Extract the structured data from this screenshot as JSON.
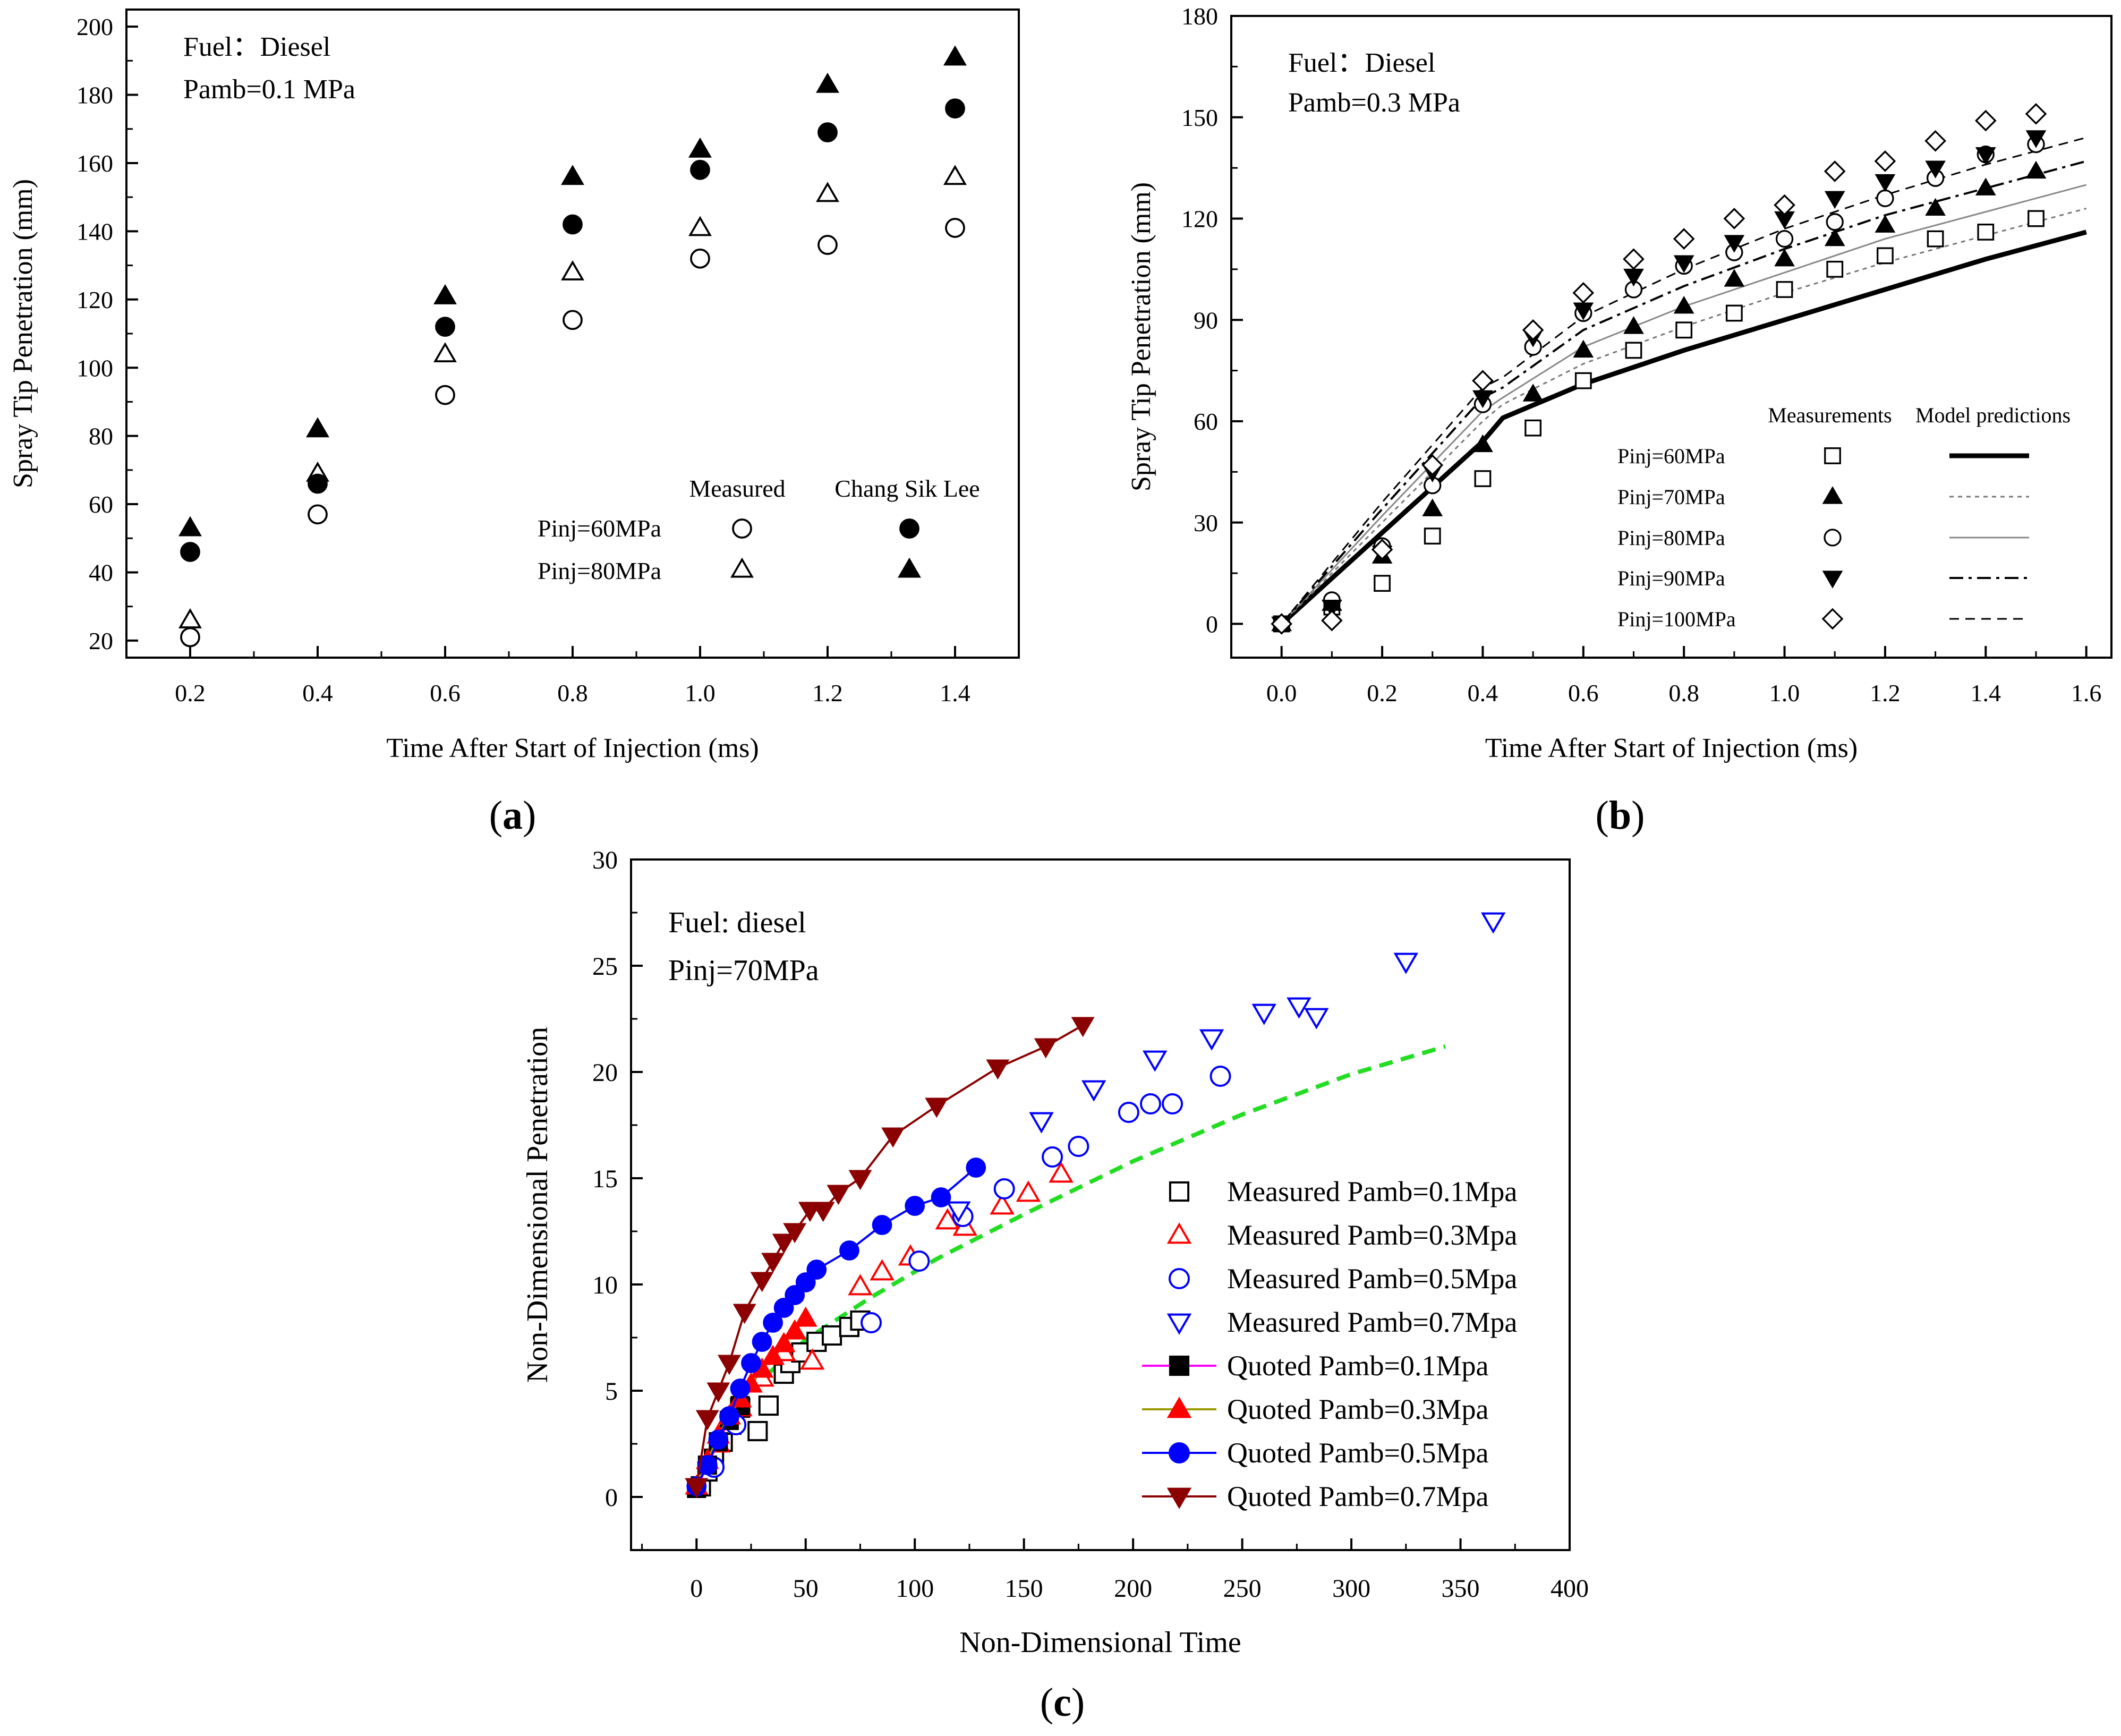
{
  "figure": {
    "panels": [
      {
        "label": "(a)",
        "label_main": "a",
        "annotation_lines": [
          "Fuel：Diesel",
          "Pamb=0.1 MPa"
        ],
        "legend": {
          "col_headers": [
            "Measured",
            "Chang Sik Lee"
          ],
          "rows": [
            "Pinj=60MPa",
            "Pinj=80MPa"
          ]
        }
      },
      {
        "label": "(b)",
        "label_main": "b",
        "annotation_lines": [
          "Fuel：Diesel",
          "Pamb=0.3 MPa"
        ],
        "legend": {
          "col_headers": [
            "Measurements",
            "Model predictions"
          ],
          "rows": [
            "Pinj=60MPa",
            "Pinj=70MPa",
            "Pinj=80MPa",
            "Pinj=90MPa",
            "Pinj=100MPa"
          ]
        }
      },
      {
        "label": "(c)",
        "label_main": "c",
        "annotation_lines": [
          "Fuel: diesel",
          "Pinj=70MPa"
        ],
        "legend": {
          "rows": [
            "Measured Pamb=0.1Mpa",
            "Measured Pamb=0.3Mpa",
            "Measured Pamb=0.5Mpa",
            "Measured Pamb=0.7Mpa",
            "Quoted  Pamb=0.1Mpa",
            "Quoted  Pamb=0.3Mpa",
            "Quoted  Pamb=0.5Mpa",
            "Quoted  Pamb=0.7Mpa"
          ]
        }
      }
    ],
    "colors": {
      "black": "#000000",
      "red": "#ff0000",
      "blue": "#0000ff",
      "dark_red": "#8b0000",
      "green_dashed": "#22dd22",
      "magenta": "#ff00ff",
      "olive": "#999900",
      "gray": "#808080"
    }
  },
  "chart_data": [
    {
      "type": "scatter",
      "xlabel": "Time After Start of Injection (ms)",
      "ylabel": "Spray Tip Penetration (mm)",
      "xlim": [
        0.1,
        1.5
      ],
      "ylim": [
        15,
        205
      ],
      "xticks": [
        0.2,
        0.4,
        0.6,
        0.8,
        1.0,
        1.2,
        1.4
      ],
      "yticks": [
        20,
        40,
        60,
        80,
        100,
        120,
        140,
        160,
        180,
        200
      ],
      "x_tick_labels": [
        "0.2",
        "0.4",
        "0.6",
        "0.8",
        "1.0",
        "1.2",
        "1.4"
      ],
      "y_tick_labels": [
        "20",
        "40",
        "60",
        "80",
        "100",
        "120",
        "140",
        "160",
        "180",
        "200"
      ],
      "grid": false,
      "legend_position": "center-right",
      "series": [
        {
          "marker": "circle-open",
          "x": [
            0.2,
            0.4,
            0.6,
            0.8,
            1.0,
            1.2,
            1.4
          ],
          "y": [
            21,
            57,
            92,
            114,
            132,
            136,
            141
          ]
        },
        {
          "marker": "triangle-open",
          "x": [
            0.2,
            0.4,
            0.6,
            0.8,
            1.0,
            1.2,
            1.4
          ],
          "y": [
            26,
            69,
            104,
            128,
            141,
            151,
            156
          ]
        },
        {
          "marker": "circle-filled",
          "x": [
            0.2,
            0.4,
            0.6,
            0.8,
            1.0,
            1.2,
            1.4
          ],
          "y": [
            46,
            66,
            112,
            142,
            158,
            169,
            176
          ]
        },
        {
          "marker": "triangle-filled",
          "x": [
            0.2,
            0.4,
            0.6,
            0.8,
            1.0,
            1.2,
            1.4
          ],
          "y": [
            53,
            82,
            121,
            156,
            164,
            183,
            191
          ]
        }
      ]
    },
    {
      "type": "line",
      "xlabel": "Time After Start of Injection (ms)",
      "ylabel": "Spray Tip Penetration (mm)",
      "xlim": [
        -0.1,
        1.65
      ],
      "ylim": [
        -10,
        180
      ],
      "xticks": [
        0.0,
        0.2,
        0.4,
        0.6,
        0.8,
        1.0,
        1.2,
        1.4,
        1.6
      ],
      "yticks": [
        0,
        30,
        60,
        90,
        120,
        150,
        180
      ],
      "x_tick_labels": [
        "0.0",
        "0.2",
        "0.4",
        "0.6",
        "0.8",
        "1.0",
        "1.2",
        "1.4",
        "1.6"
      ],
      "y_tick_labels": [
        "0",
        "30",
        "60",
        "90",
        "120",
        "150",
        "180"
      ],
      "grid": false,
      "legend_position": "bottom-right",
      "measurements": [
        {
          "marker": "square-open",
          "x": [
            0,
            0.1,
            0.2,
            0.3,
            0.4,
            0.5,
            0.6,
            0.7,
            0.8,
            0.9,
            1.0,
            1.1,
            1.2,
            1.3,
            1.4,
            1.5
          ],
          "y": [
            0,
            5,
            12,
            26,
            43,
            58,
            72,
            81,
            87,
            92,
            99,
            105,
            109,
            114,
            116,
            120
          ]
        },
        {
          "marker": "triangle-filled",
          "x": [
            0,
            0.1,
            0.2,
            0.3,
            0.4,
            0.5,
            0.6,
            0.7,
            0.8,
            0.9,
            1.0,
            1.1,
            1.2,
            1.3,
            1.4,
            1.5
          ],
          "y": [
            0,
            6,
            20,
            34,
            53,
            68,
            81,
            88,
            94,
            102,
            108,
            114,
            118,
            123,
            129,
            134
          ]
        },
        {
          "marker": "circle-open",
          "x": [
            0,
            0.1,
            0.2,
            0.3,
            0.4,
            0.5,
            0.6,
            0.7,
            0.8,
            0.9,
            1.0,
            1.1,
            1.2,
            1.3,
            1.4,
            1.5
          ],
          "y": [
            0,
            7,
            23,
            41,
            65,
            82,
            92,
            99,
            106,
            110,
            114,
            119,
            126,
            132,
            139,
            142
          ]
        },
        {
          "marker": "triangle-down-filled",
          "x": [
            0,
            0.1,
            0.2,
            0.3,
            0.4,
            0.5,
            0.6,
            0.7,
            0.8,
            0.9,
            1.0,
            1.1,
            1.2,
            1.3,
            1.4,
            1.5
          ],
          "y": [
            0,
            5,
            21,
            45,
            67,
            85,
            93,
            103,
            107,
            113,
            120,
            126,
            131,
            135,
            139,
            144
          ]
        },
        {
          "marker": "diamond-open",
          "x": [
            0,
            0.1,
            0.2,
            0.3,
            0.4,
            0.5,
            0.6,
            0.7,
            0.8,
            0.9,
            1.0,
            1.1,
            1.2,
            1.3,
            1.4,
            1.5
          ],
          "y": [
            0,
            1,
            22,
            47,
            72,
            87,
            98,
            108,
            114,
            120,
            124,
            134,
            137,
            143,
            149,
            151
          ]
        }
      ],
      "model_predictions": [
        {
          "style": "thick-solid",
          "x": [
            0,
            0.2,
            0.4,
            0.44,
            0.6,
            0.8,
            1.0,
            1.2,
            1.4,
            1.6
          ],
          "y": [
            0,
            27,
            54,
            61,
            71,
            81,
            90,
            99,
            108,
            116
          ]
        },
        {
          "style": "dotted-gray",
          "x": [
            0,
            0.2,
            0.4,
            0.44,
            0.6,
            0.8,
            1.0,
            1.2,
            1.4,
            1.6
          ],
          "y": [
            0,
            30,
            60,
            65,
            77,
            88,
            98,
            107,
            115,
            123
          ]
        },
        {
          "style": "thin-solid-gray",
          "x": [
            0,
            0.2,
            0.4,
            0.44,
            0.6,
            0.8,
            1.0,
            1.2,
            1.4,
            1.6
          ],
          "y": [
            0,
            32,
            63,
            67,
            82,
            94,
            104,
            114,
            122,
            130
          ]
        },
        {
          "style": "dash-dot",
          "x": [
            0,
            0.2,
            0.4,
            0.44,
            0.6,
            0.8,
            1.0,
            1.2,
            1.4,
            1.6
          ],
          "y": [
            0,
            34,
            67,
            70,
            87,
            100,
            111,
            121,
            129,
            137
          ]
        },
        {
          "style": "dashed",
          "x": [
            0,
            0.2,
            0.4,
            0.44,
            0.6,
            0.8,
            1.0,
            1.2,
            1.4,
            1.6
          ],
          "y": [
            0,
            36,
            70,
            73,
            91,
            105,
            117,
            127,
            136,
            144
          ]
        }
      ]
    },
    {
      "type": "line",
      "xlabel": "Non-Dimensional Time",
      "ylabel": "Non-Dimensional Penetration",
      "xlim": [
        -30,
        400
      ],
      "ylim": [
        -2.5,
        30
      ],
      "xticks": [
        0,
        50,
        100,
        150,
        200,
        250,
        300,
        350,
        400
      ],
      "yticks": [
        0,
        5,
        10,
        15,
        20,
        25,
        30
      ],
      "x_tick_labels": [
        "0",
        "50",
        "100",
        "150",
        "200",
        "250",
        "300",
        "350",
        "400"
      ],
      "y_tick_labels": [
        "0",
        "5",
        "10",
        "15",
        "20",
        "25",
        "30"
      ],
      "grid": false,
      "legend_position": "bottom-right",
      "measured": [
        {
          "marker": "square-open",
          "color": "#000000",
          "x": [
            2,
            5,
            8,
            12,
            16,
            20,
            28,
            33,
            40,
            43,
            48,
            55,
            62,
            70,
            75
          ],
          "y": [
            0.5,
            1.2,
            1.8,
            2.6,
            3.4,
            4.2,
            3.1,
            4.3,
            5.8,
            6.3,
            6.8,
            7.3,
            7.6,
            8.0,
            8.3
          ]
        },
        {
          "marker": "triangle-open",
          "color": "#ff0000",
          "x": [
            10,
            20,
            30,
            40,
            53,
            75,
            85,
            98,
            115,
            123,
            140,
            152,
            167
          ],
          "y": [
            2.5,
            4.2,
            5.6,
            6.8,
            6.4,
            9.9,
            10.6,
            11.3,
            13.0,
            12.7,
            13.7,
            14.3,
            15.2
          ]
        },
        {
          "marker": "circle-open",
          "color": "#0000ff",
          "x": [
            8,
            18,
            80,
            102,
            122,
            141,
            163,
            175,
            198,
            208,
            218,
            240
          ],
          "y": [
            1.4,
            3.4,
            8.2,
            11.1,
            13.2,
            14.5,
            16.0,
            16.5,
            18.1,
            18.5,
            18.5,
            19.8
          ]
        },
        {
          "marker": "triangle-down-open",
          "color": "#0000ff",
          "x": [
            120,
            158,
            182,
            210,
            236,
            260,
            276,
            284,
            325,
            365
          ],
          "y": [
            13.5,
            17.7,
            19.2,
            20.6,
            21.6,
            22.8,
            23.1,
            22.6,
            25.2,
            27.1
          ]
        }
      ],
      "quoted": [
        {
          "marker": "square-filled",
          "line_color": "#ff00ff",
          "marker_color": "#000000",
          "x": [
            0,
            5,
            10,
            15,
            20
          ],
          "y": [
            0.4,
            1.5,
            2.6,
            3.6,
            4.3
          ]
        },
        {
          "marker": "triangle-filled",
          "line_color": "#999900",
          "marker_color": "#ff0000",
          "x": [
            0,
            5,
            10,
            15,
            20,
            25,
            30,
            35,
            40,
            45,
            50
          ],
          "y": [
            0.5,
            1.7,
            2.9,
            3.8,
            4.6,
            5.3,
            6.0,
            6.6,
            7.2,
            7.8,
            8.4
          ]
        },
        {
          "marker": "circle-filled",
          "line_color": "#0000ff",
          "marker_color": "#0000ff",
          "x": [
            0,
            5,
            10,
            15,
            20,
            25,
            30,
            35,
            40,
            45,
            50,
            55,
            70,
            85,
            100,
            112,
            128
          ],
          "y": [
            0.5,
            1.5,
            2.7,
            3.8,
            5.1,
            6.3,
            7.3,
            8.2,
            8.9,
            9.5,
            10.1,
            10.7,
            11.6,
            12.8,
            13.7,
            14.1,
            15.5
          ]
        },
        {
          "marker": "triangle-down-filled",
          "line_color": "#8b0000",
          "marker_color": "#8b0000",
          "x": [
            0,
            5,
            10,
            15,
            22,
            30,
            35,
            40,
            45,
            52,
            58,
            65,
            75,
            90,
            110,
            138,
            160,
            177
          ],
          "y": [
            0.5,
            3.7,
            5.0,
            6.3,
            8.7,
            10.2,
            11.1,
            12.0,
            12.5,
            13.5,
            13.5,
            14.3,
            15.0,
            17.0,
            18.4,
            20.2,
            21.2,
            22.2
          ]
        }
      ],
      "fit_line": {
        "style": "dashed",
        "color": "#22dd22",
        "x": [
          0,
          20,
          50,
          80,
          110,
          150,
          200,
          250,
          300,
          343
        ],
        "y": [
          0.4,
          4.6,
          7.4,
          9.4,
          11.2,
          13.3,
          15.8,
          18.0,
          19.9,
          21.2
        ]
      }
    }
  ]
}
